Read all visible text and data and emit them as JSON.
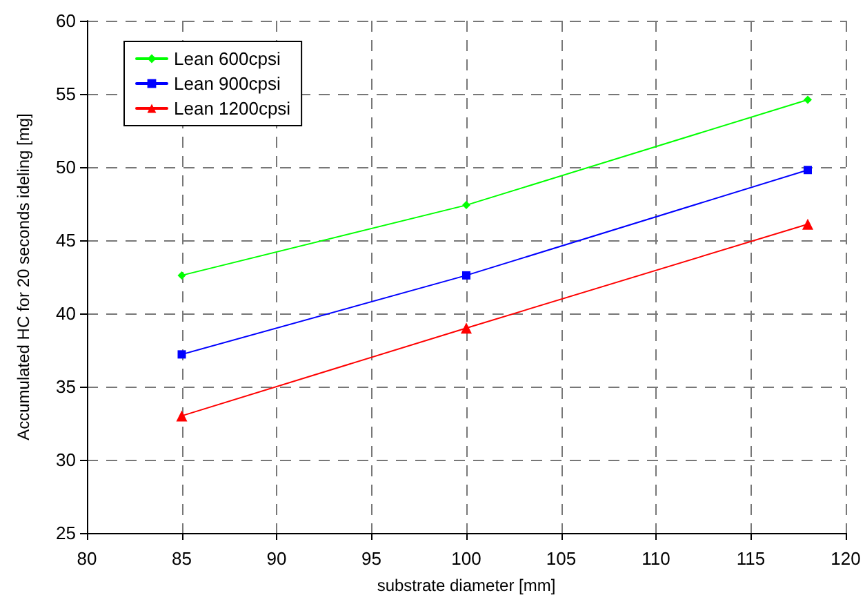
{
  "chart_data": {
    "type": "line",
    "xlabel": "substrate diameter [mm]",
    "ylabel": "Accumulated HC for 20 seconds ideling [mg]",
    "x": [
      85,
      100,
      118
    ],
    "series": [
      {
        "name": "Lean 600cpsi",
        "color": "#00ff00",
        "marker": "diamond",
        "values": [
          42.6,
          47.4,
          54.6
        ]
      },
      {
        "name": "Lean 900cpsi",
        "color": "#0000ff",
        "marker": "square",
        "values": [
          37.2,
          42.6,
          49.8
        ]
      },
      {
        "name": "Lean 1200cpsi",
        "color": "#ff0000",
        "marker": "triangle",
        "values": [
          33.0,
          39.0,
          46.1
        ]
      }
    ],
    "xlim": [
      80,
      120
    ],
    "xticks": [
      80,
      85,
      90,
      95,
      100,
      105,
      110,
      115,
      120
    ],
    "ylim": [
      25,
      60
    ],
    "yticks": [
      25,
      30,
      35,
      40,
      45,
      50,
      55,
      60
    ],
    "grid": true,
    "legend": "top left",
    "line_style": "solid"
  }
}
